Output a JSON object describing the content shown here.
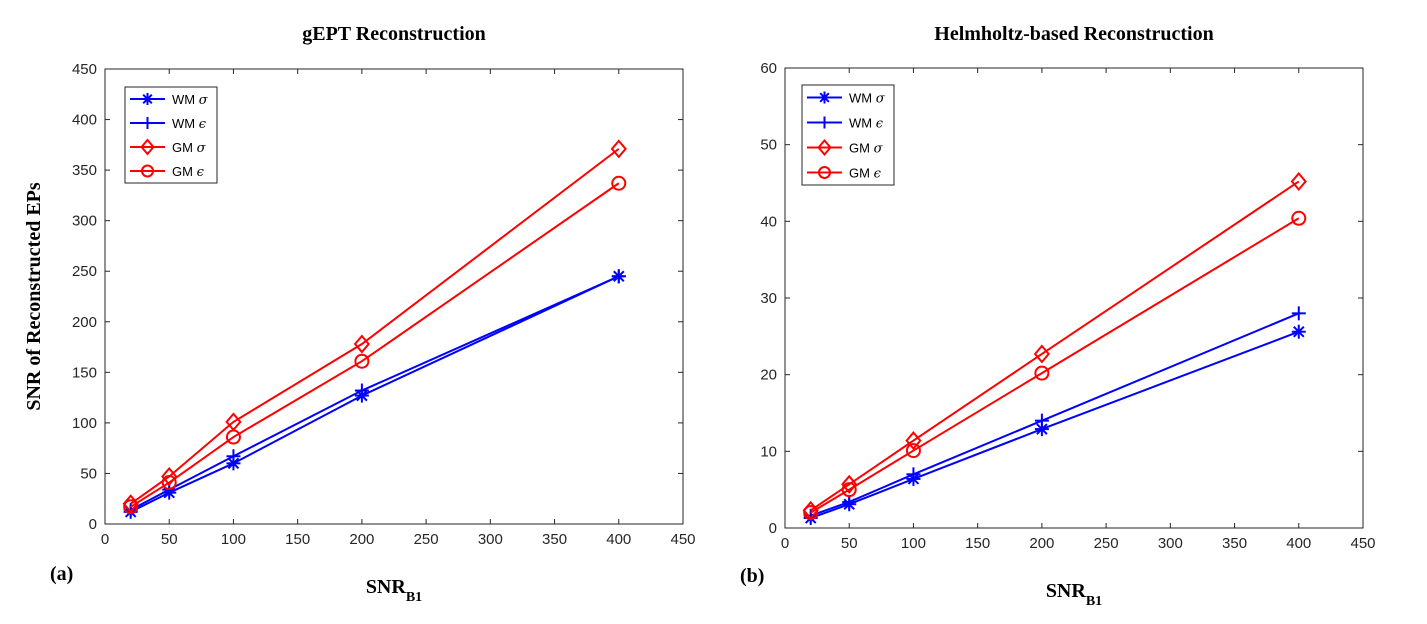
{
  "chart_data": [
    {
      "type": "line",
      "panel_label": "(a)",
      "title": "gEPT Reconstruction",
      "xlabel": "SNR",
      "xlabel_sub": "B1",
      "ylabel": "SNR of Reconstructed EPs",
      "xlim": [
        0,
        450
      ],
      "ylim": [
        0,
        450
      ],
      "xticks": [
        0,
        50,
        100,
        150,
        200,
        250,
        300,
        350,
        400,
        450
      ],
      "yticks": [
        0,
        50,
        100,
        150,
        200,
        250,
        300,
        350,
        400,
        450
      ],
      "legend_position": "top-left",
      "x": [
        20,
        50,
        100,
        200,
        400
      ],
      "series": [
        {
          "name": "WM σ",
          "legend_base": "WM",
          "legend_sym": "σ",
          "color": "#0000ff",
          "marker": "star",
          "values": [
            12,
            31,
            60,
            127,
            245
          ]
        },
        {
          "name": "WM ϵ",
          "legend_base": "WM",
          "legend_sym": "ϵ",
          "color": "#0000ff",
          "marker": "plus",
          "values": [
            14,
            34,
            67,
            132,
            245
          ]
        },
        {
          "name": "GM σ",
          "legend_base": "GM",
          "legend_sym": "σ",
          "color": "#ff0000",
          "marker": "diamond",
          "values": [
            20,
            47,
            101,
            178,
            371
          ]
        },
        {
          "name": "GM ϵ",
          "legend_base": "GM",
          "legend_sym": "ϵ",
          "color": "#ff0000",
          "marker": "circle",
          "values": [
            17,
            41,
            86,
            161,
            337
          ]
        }
      ]
    },
    {
      "type": "line",
      "panel_label": "(b)",
      "title": "Helmholtz-based Reconstruction",
      "xlabel": "SNR",
      "xlabel_sub": "B1",
      "ylabel": "",
      "xlim": [
        0,
        450
      ],
      "ylim": [
        0,
        60
      ],
      "xticks": [
        0,
        50,
        100,
        150,
        200,
        250,
        300,
        350,
        400,
        450
      ],
      "yticks": [
        0,
        10,
        20,
        30,
        40,
        50,
        60
      ],
      "legend_position": "top-left",
      "x": [
        20,
        50,
        100,
        200,
        400
      ],
      "series": [
        {
          "name": "WM σ",
          "legend_base": "WM",
          "legend_sym": "σ",
          "color": "#0000ff",
          "marker": "star",
          "values": [
            1.3,
            3.1,
            6.4,
            12.9,
            25.6
          ]
        },
        {
          "name": "WM ϵ",
          "legend_base": "WM",
          "legend_sym": "ϵ",
          "color": "#0000ff",
          "marker": "plus",
          "values": [
            1.6,
            3.4,
            7.0,
            14.0,
            28.0
          ]
        },
        {
          "name": "GM σ",
          "legend_base": "GM",
          "legend_sym": "σ",
          "color": "#ff0000",
          "marker": "diamond",
          "values": [
            2.3,
            5.7,
            11.4,
            22.7,
            45.2
          ]
        },
        {
          "name": "GM ϵ",
          "legend_base": "GM",
          "legend_sym": "ϵ",
          "color": "#ff0000",
          "marker": "circle",
          "values": [
            2.0,
            5.0,
            10.1,
            20.2,
            40.4
          ]
        }
      ]
    }
  ]
}
